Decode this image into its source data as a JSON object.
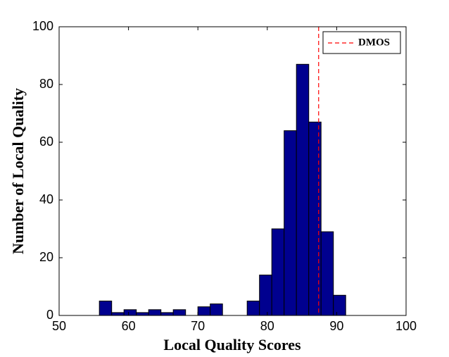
{
  "chart_data": {
    "type": "histogram",
    "xlabel": "Local Quality Scores",
    "ylabel": "Number of Local Quality",
    "bins": [
      55.8,
      57.575,
      59.35,
      61.125,
      62.9,
      64.675,
      66.45,
      68.225,
      70.0,
      71.775,
      73.55,
      75.325,
      77.1,
      78.875,
      80.65,
      82.425,
      84.2,
      85.975,
      87.75,
      89.525,
      91.3
    ],
    "values": [
      5,
      1,
      2,
      1,
      2,
      1,
      2,
      0,
      3,
      4,
      0,
      0,
      5,
      14,
      30,
      64,
      87,
      67,
      29,
      7
    ],
    "color": "#00008f",
    "xlim": [
      50,
      100
    ],
    "xticks": [
      50,
      60,
      70,
      80,
      90,
      100
    ],
    "ylim": [
      0,
      100
    ],
    "yticks": [
      0,
      20,
      40,
      60,
      80,
      100
    ],
    "vlines": [
      {
        "name": "DMOS",
        "x": 87.4,
        "color": "#ff0000"
      }
    ],
    "legend": "top-right"
  }
}
